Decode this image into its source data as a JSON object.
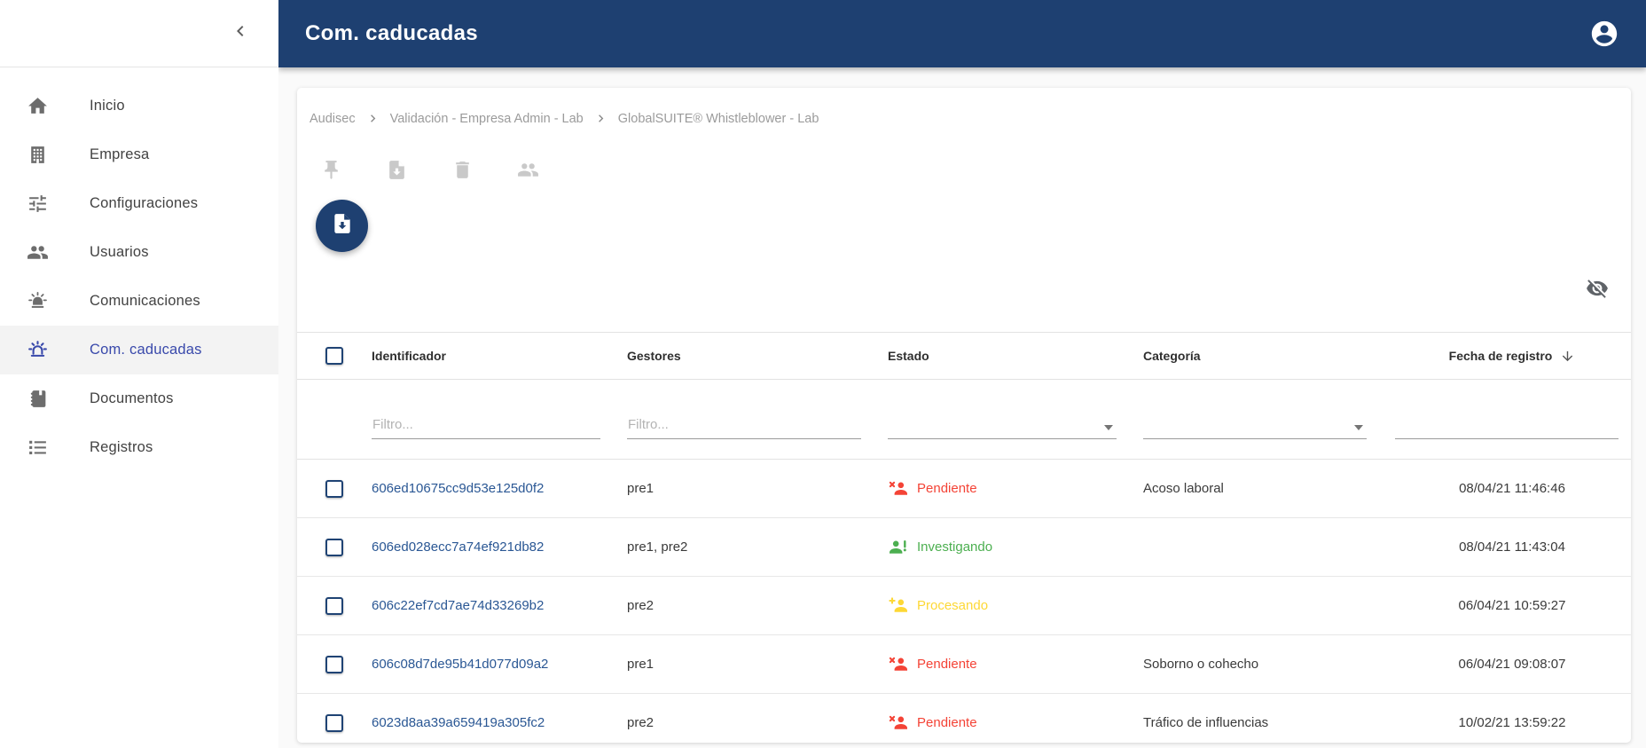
{
  "colors": {
    "topbar_bg": "#1e4071",
    "active_nav": "#3949ab",
    "identifier_link": "#2a5794",
    "estado_pendiente": "#f44336",
    "estado_investigando": "#4caf50",
    "estado_procesando": "#fdd835"
  },
  "topbar": {
    "title": "Com. caducadas",
    "account_icon": "account-circle-icon"
  },
  "sidebar": {
    "collapse_icon": "chevron-left-icon",
    "items": [
      {
        "label": "Inicio",
        "icon": "home-icon",
        "active": false
      },
      {
        "label": "Empresa",
        "icon": "building-icon",
        "active": false
      },
      {
        "label": "Configuraciones",
        "icon": "tune-icon",
        "active": false
      },
      {
        "label": "Usuarios",
        "icon": "users-icon",
        "active": false
      },
      {
        "label": "Comunicaciones",
        "icon": "siren-icon",
        "active": false
      },
      {
        "label": "Com. caducadas",
        "icon": "siren-outline-icon",
        "active": true
      },
      {
        "label": "Documentos",
        "icon": "notebook-icon",
        "active": false
      },
      {
        "label": "Registros",
        "icon": "list-icon",
        "active": false
      }
    ]
  },
  "breadcrumb": [
    "Audisec",
    "Validación - Empresa Admin - Lab",
    "GlobalSUITE® Whistleblower - Lab"
  ],
  "toolbar": {
    "icons": [
      "pin-icon",
      "file-download-icon",
      "trash-icon",
      "users-icon"
    ]
  },
  "fab": {
    "icon": "file-download-icon"
  },
  "table": {
    "visibility_icon": "eye-off-icon",
    "select_all_checked": false,
    "sort": {
      "column": "Fecha de registro",
      "direction": "desc"
    },
    "columns": [
      {
        "label": "Identificador",
        "filter": {
          "type": "text",
          "placeholder": "Filtro...",
          "value": ""
        }
      },
      {
        "label": "Gestores",
        "filter": {
          "type": "text",
          "placeholder": "Filtro...",
          "value": ""
        }
      },
      {
        "label": "Estado",
        "filter": {
          "type": "select",
          "value": ""
        }
      },
      {
        "label": "Categoría",
        "filter": {
          "type": "select",
          "value": ""
        }
      },
      {
        "label": "Fecha de registro",
        "filter": {
          "type": "text",
          "placeholder": "",
          "value": ""
        }
      }
    ],
    "rows": [
      {
        "checked": false,
        "id": "606ed10675cc9d53e125d0f2",
        "gestores": "pre1",
        "estado": {
          "label": "Pendiente",
          "icon": "person-x-icon",
          "color": "#f44336"
        },
        "categoria": "Acoso laboral",
        "fecha": "08/04/21 11:46:46"
      },
      {
        "checked": false,
        "id": "606ed028ecc7a74ef921db82",
        "gestores": "pre1, pre2",
        "estado": {
          "label": "Investigando",
          "icon": "person-exclamation-icon",
          "color": "#4caf50"
        },
        "categoria": "",
        "fecha": "08/04/21 11:43:04"
      },
      {
        "checked": false,
        "id": "606c22ef7cd7ae74d33269b2",
        "gestores": "pre2",
        "estado": {
          "label": "Procesando",
          "icon": "person-plus-icon",
          "color": "#fdd835"
        },
        "categoria": "",
        "fecha": "06/04/21 10:59:27"
      },
      {
        "checked": false,
        "id": "606c08d7de95b41d077d09a2",
        "gestores": "pre1",
        "estado": {
          "label": "Pendiente",
          "icon": "person-x-icon",
          "color": "#f44336"
        },
        "categoria": "Soborno o cohecho",
        "fecha": "06/04/21 09:08:07"
      },
      {
        "checked": false,
        "id": "6023d8aa39a659419a305fc2",
        "gestores": "pre2",
        "estado": {
          "label": "Pendiente",
          "icon": "person-x-icon",
          "color": "#f44336"
        },
        "categoria": "Tráfico de influencias",
        "fecha": "10/02/21 13:59:22"
      }
    ]
  }
}
